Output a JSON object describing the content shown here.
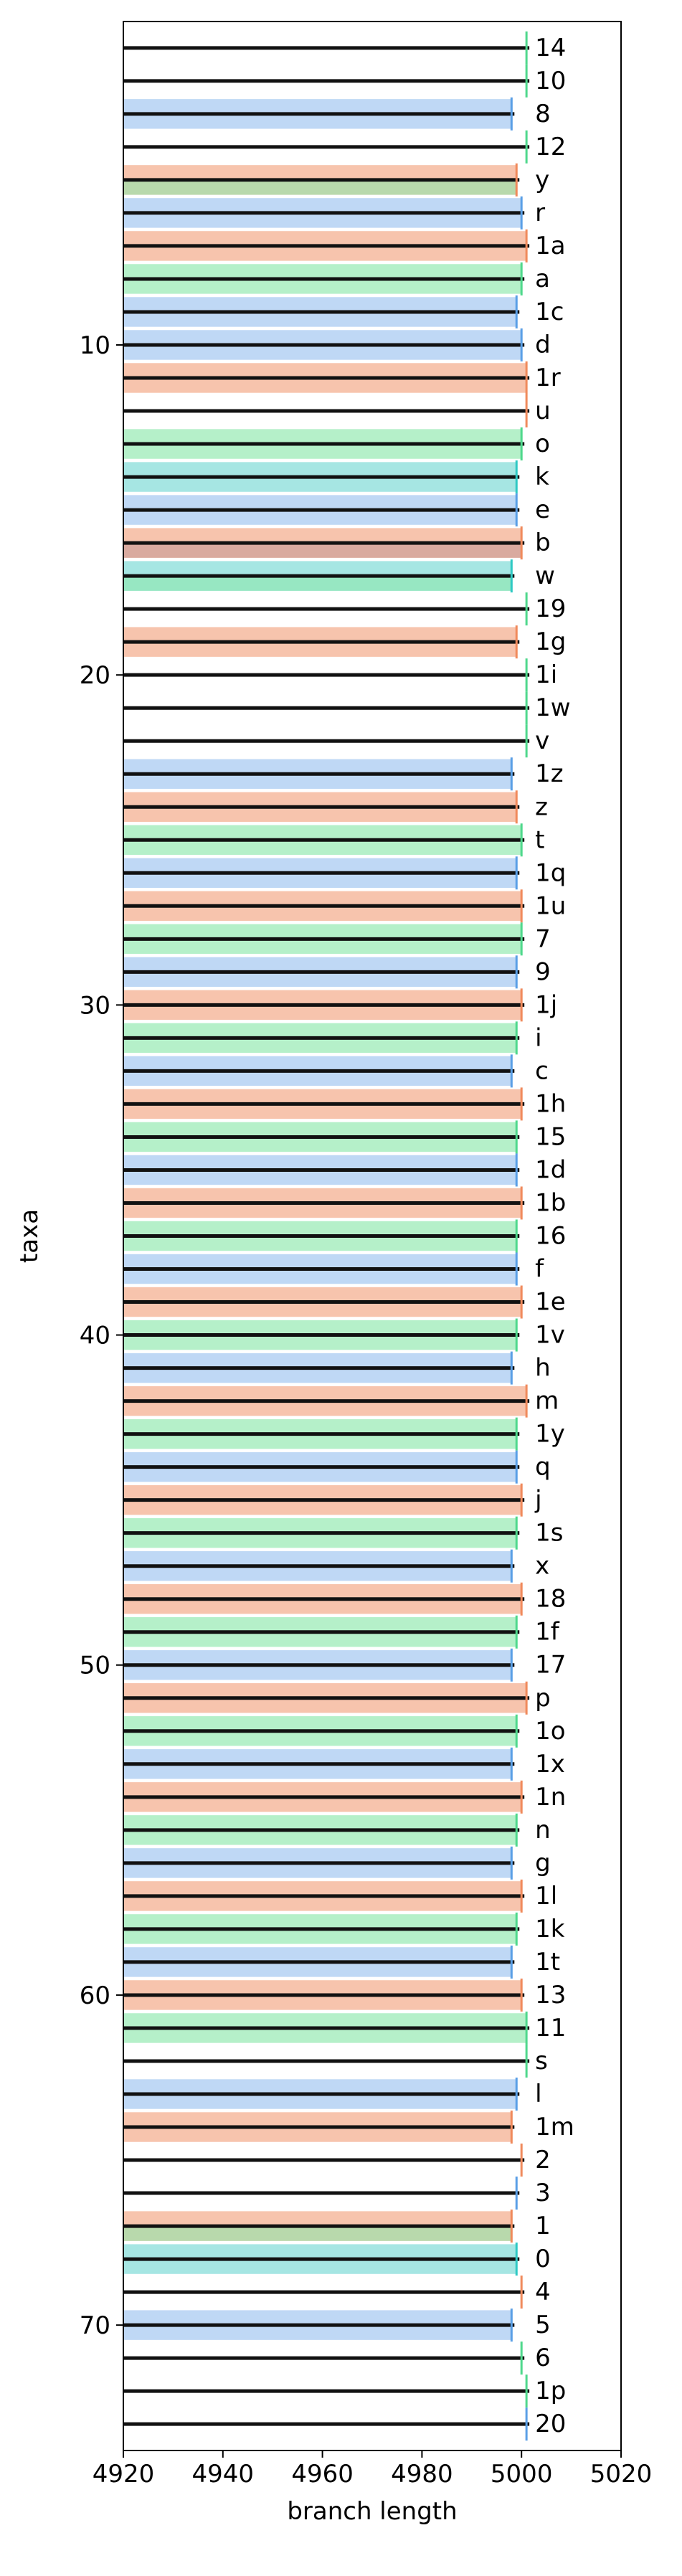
{
  "chart_data": {
    "type": "bar",
    "orientation": "horizontal",
    "title": "",
    "xlabel": "branch length",
    "ylabel": "taxa",
    "xlim": [
      4920,
      5020
    ],
    "ylim": [
      73.8,
      0.2
    ],
    "xticks": [
      4920,
      4940,
      4960,
      4980,
      5000,
      5020
    ],
    "yticks": [
      10,
      20,
      30,
      40,
      50,
      60,
      70
    ],
    "grid": false,
    "legend": "none",
    "colors": {
      "orange": "#f3a481",
      "blue": "#9cc3ef",
      "green": "#8ee8ac",
      "teal": "#76d8d4",
      "brown": "#c49a96",
      "dark": "#111111",
      "orange_line": "#f08a5c",
      "blue_line": "#5a9fe6",
      "green_line": "#4fd88c",
      "teal_line": "#2fc9c4"
    },
    "taxa": [
      {
        "y": 1,
        "label": "14",
        "end": 5001,
        "color": "green",
        "band": false
      },
      {
        "y": 2,
        "label": "10",
        "end": 5001,
        "color": "green",
        "band": false
      },
      {
        "y": 3,
        "label": "8",
        "end": 4998,
        "color": "blue",
        "band": true
      },
      {
        "y": 4,
        "label": "12",
        "end": 5001,
        "color": "green",
        "band": false
      },
      {
        "y": 5,
        "label": "y",
        "end": 4999,
        "color": "orange",
        "band": true,
        "band2": "green"
      },
      {
        "y": 6,
        "label": "r",
        "end": 5000,
        "color": "blue",
        "band": true
      },
      {
        "y": 7,
        "label": "1a",
        "end": 5001,
        "color": "orange",
        "band": true
      },
      {
        "y": 8,
        "label": "a",
        "end": 5000,
        "color": "green",
        "band": true
      },
      {
        "y": 9,
        "label": "1c",
        "end": 4999,
        "color": "blue",
        "band": true
      },
      {
        "y": 10,
        "label": "d",
        "end": 5000,
        "color": "blue",
        "band": true
      },
      {
        "y": 11,
        "label": "1r",
        "end": 5001,
        "color": "orange",
        "band": true
      },
      {
        "y": 12,
        "label": "u",
        "end": 5001,
        "color": "orange",
        "band": false
      },
      {
        "y": 13,
        "label": "o",
        "end": 5000,
        "color": "green",
        "band": true
      },
      {
        "y": 14,
        "label": "k",
        "end": 4999,
        "color": "teal",
        "band": true
      },
      {
        "y": 15,
        "label": "e",
        "end": 4999,
        "color": "blue",
        "band": true
      },
      {
        "y": 16,
        "label": "b",
        "end": 5000,
        "color": "orange",
        "band": true,
        "band2": "brown"
      },
      {
        "y": 17,
        "label": "w",
        "end": 4998,
        "color": "teal",
        "band": true,
        "band2": "green"
      },
      {
        "y": 18,
        "label": "19",
        "end": 5001,
        "color": "green",
        "band": false
      },
      {
        "y": 19,
        "label": "1g",
        "end": 4999,
        "color": "orange",
        "band": true
      },
      {
        "y": 20,
        "label": "1i",
        "end": 5001,
        "color": "green",
        "band": false
      },
      {
        "y": 21,
        "label": "1w",
        "end": 5001,
        "color": "green",
        "band": false
      },
      {
        "y": 22,
        "label": "v",
        "end": 5001,
        "color": "green",
        "band": false
      },
      {
        "y": 23,
        "label": "1z",
        "end": 4998,
        "color": "blue",
        "band": true
      },
      {
        "y": 24,
        "label": "z",
        "end": 4999,
        "color": "orange",
        "band": true
      },
      {
        "y": 25,
        "label": "t",
        "end": 5000,
        "color": "green",
        "band": true
      },
      {
        "y": 26,
        "label": "1q",
        "end": 4999,
        "color": "blue",
        "band": true
      },
      {
        "y": 27,
        "label": "1u",
        "end": 5000,
        "color": "orange",
        "band": true
      },
      {
        "y": 28,
        "label": "7",
        "end": 5000,
        "color": "green",
        "band": true
      },
      {
        "y": 29,
        "label": "9",
        "end": 4999,
        "color": "blue",
        "band": true
      },
      {
        "y": 30,
        "label": "1j",
        "end": 5000,
        "color": "orange",
        "band": true
      },
      {
        "y": 31,
        "label": "i",
        "end": 4999,
        "color": "green",
        "band": true
      },
      {
        "y": 32,
        "label": "c",
        "end": 4998,
        "color": "blue",
        "band": true
      },
      {
        "y": 33,
        "label": "1h",
        "end": 5000,
        "color": "orange",
        "band": true
      },
      {
        "y": 34,
        "label": "15",
        "end": 4999,
        "color": "green",
        "band": true
      },
      {
        "y": 35,
        "label": "1d",
        "end": 4999,
        "color": "blue",
        "band": true
      },
      {
        "y": 36,
        "label": "1b",
        "end": 5000,
        "color": "orange",
        "band": true
      },
      {
        "y": 37,
        "label": "16",
        "end": 4999,
        "color": "green",
        "band": true
      },
      {
        "y": 38,
        "label": "f",
        "end": 4999,
        "color": "blue",
        "band": true
      },
      {
        "y": 39,
        "label": "1e",
        "end": 5000,
        "color": "orange",
        "band": true
      },
      {
        "y": 40,
        "label": "1v",
        "end": 4999,
        "color": "green",
        "band": true
      },
      {
        "y": 41,
        "label": "h",
        "end": 4998,
        "color": "blue",
        "band": true
      },
      {
        "y": 42,
        "label": "m",
        "end": 5001,
        "color": "orange",
        "band": true
      },
      {
        "y": 43,
        "label": "1y",
        "end": 4999,
        "color": "green",
        "band": true
      },
      {
        "y": 44,
        "label": "q",
        "end": 4999,
        "color": "blue",
        "band": true
      },
      {
        "y": 45,
        "label": "j",
        "end": 5000,
        "color": "orange",
        "band": true
      },
      {
        "y": 46,
        "label": "1s",
        "end": 4999,
        "color": "green",
        "band": true
      },
      {
        "y": 47,
        "label": "x",
        "end": 4998,
        "color": "blue",
        "band": true
      },
      {
        "y": 48,
        "label": "18",
        "end": 5000,
        "color": "orange",
        "band": true
      },
      {
        "y": 49,
        "label": "1f",
        "end": 4999,
        "color": "green",
        "band": true
      },
      {
        "y": 50,
        "label": "17",
        "end": 4998,
        "color": "blue",
        "band": true
      },
      {
        "y": 51,
        "label": "p",
        "end": 5001,
        "color": "orange",
        "band": true
      },
      {
        "y": 52,
        "label": "1o",
        "end": 4999,
        "color": "green",
        "band": true
      },
      {
        "y": 53,
        "label": "1x",
        "end": 4998,
        "color": "blue",
        "band": true
      },
      {
        "y": 54,
        "label": "1n",
        "end": 5000,
        "color": "orange",
        "band": true
      },
      {
        "y": 55,
        "label": "n",
        "end": 4999,
        "color": "green",
        "band": true
      },
      {
        "y": 56,
        "label": "g",
        "end": 4998,
        "color": "blue",
        "band": true
      },
      {
        "y": 57,
        "label": "1l",
        "end": 5000,
        "color": "orange",
        "band": true
      },
      {
        "y": 58,
        "label": "1k",
        "end": 4999,
        "color": "green",
        "band": true
      },
      {
        "y": 59,
        "label": "1t",
        "end": 4998,
        "color": "blue",
        "band": true
      },
      {
        "y": 60,
        "label": "13",
        "end": 5000,
        "color": "orange",
        "band": true
      },
      {
        "y": 61,
        "label": "11",
        "end": 5001,
        "color": "green",
        "band": true
      },
      {
        "y": 62,
        "label": "s",
        "end": 5001,
        "color": "green",
        "band": false
      },
      {
        "y": 63,
        "label": "l",
        "end": 4999,
        "color": "blue",
        "band": true
      },
      {
        "y": 64,
        "label": "1m",
        "end": 4998,
        "color": "orange",
        "band": true
      },
      {
        "y": 65,
        "label": "2",
        "end": 5000,
        "color": "orange",
        "band": false
      },
      {
        "y": 66,
        "label": "3",
        "end": 4999,
        "color": "blue",
        "band": false
      },
      {
        "y": 67,
        "label": "1",
        "end": 4998,
        "color": "orange",
        "band": true,
        "band2": "green"
      },
      {
        "y": 68,
        "label": "0",
        "end": 4999,
        "color": "teal",
        "band": true
      },
      {
        "y": 69,
        "label": "4",
        "end": 5000,
        "color": "orange",
        "band": false
      },
      {
        "y": 70,
        "label": "5",
        "end": 4998,
        "color": "blue",
        "band": true
      },
      {
        "y": 71,
        "label": "6",
        "end": 5000,
        "color": "green",
        "band": false
      },
      {
        "y": 72,
        "label": "1p",
        "end": 5001,
        "color": "green",
        "band": false
      },
      {
        "y": 73,
        "label": "20",
        "end": 5001,
        "color": "blue",
        "band": false
      }
    ]
  }
}
